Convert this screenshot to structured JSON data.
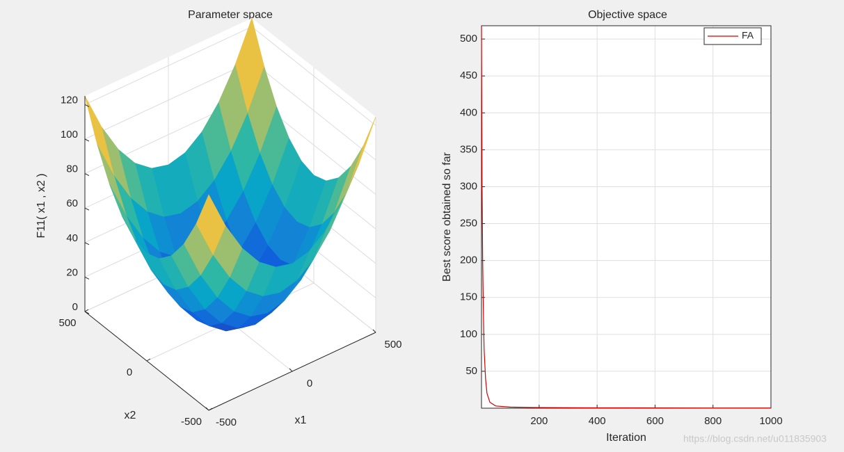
{
  "chart_data": [
    {
      "type": "surface",
      "title": "Parameter space",
      "xlabel": "x1",
      "ylabel": "x2",
      "zlabel": "F11( x1 , x2 )",
      "x": [
        -500,
        -400,
        -300,
        -200,
        -100,
        0,
        100,
        200,
        300,
        400,
        500
      ],
      "y": [
        -500,
        -400,
        -300,
        -200,
        -100,
        0,
        100,
        200,
        300,
        400,
        500
      ],
      "z": [
        [
          125,
          102.5,
          85,
          72.5,
          65,
          62.5,
          65,
          72.5,
          85,
          102.5,
          125
        ],
        [
          102.5,
          80,
          62.5,
          50,
          42.5,
          40,
          42.5,
          50,
          62.5,
          80,
          102.5
        ],
        [
          85,
          62.5,
          45,
          32.5,
          25,
          22.5,
          25,
          32.5,
          45,
          62.5,
          85
        ],
        [
          72.5,
          50,
          32.5,
          20,
          12.5,
          10,
          12.5,
          20,
          32.5,
          50,
          72.5
        ],
        [
          65,
          42.5,
          25,
          12.5,
          5,
          2.5,
          5,
          12.5,
          25,
          42.5,
          65
        ],
        [
          62.5,
          40,
          22.5,
          10,
          2.5,
          0,
          2.5,
          10,
          22.5,
          40,
          62.5
        ],
        [
          65,
          42.5,
          25,
          12.5,
          5,
          2.5,
          5,
          12.5,
          25,
          42.5,
          65
        ],
        [
          72.5,
          50,
          32.5,
          20,
          12.5,
          10,
          12.5,
          20,
          32.5,
          50,
          72.5
        ],
        [
          85,
          62.5,
          45,
          32.5,
          25,
          22.5,
          25,
          32.5,
          45,
          62.5,
          85
        ],
        [
          102.5,
          80,
          62.5,
          50,
          42.5,
          40,
          42.5,
          50,
          62.5,
          80,
          102.5
        ],
        [
          125,
          102.5,
          85,
          72.5,
          65,
          62.5,
          65,
          72.5,
          85,
          102.5,
          125
        ]
      ],
      "xlim": [
        -500,
        500
      ],
      "ylim": [
        -500,
        500
      ],
      "zlim": [
        0,
        125
      ],
      "xticks": [
        -500,
        0,
        500
      ],
      "yticks": [
        -500,
        0,
        500
      ],
      "zticks": [
        0,
        20,
        40,
        60,
        80,
        100,
        120
      ],
      "colormap": [
        "#352a87",
        "#0f5cdd",
        "#1481d6",
        "#06a4ca",
        "#2eb7a4",
        "#87bf77",
        "#d1bb59",
        "#fec832",
        "#f9fb0e"
      ],
      "grid": true
    },
    {
      "type": "line",
      "title": "Objective space",
      "xlabel": "Iteration",
      "ylabel": "Best score obtained so far",
      "series": [
        {
          "name": "FA",
          "color": "#d40000",
          "x": [
            1,
            2,
            3,
            5,
            8,
            10,
            15,
            20,
            30,
            50,
            100,
            200,
            400,
            600,
            800,
            1000
          ],
          "values": [
            518,
            400,
            300,
            200,
            120,
            80,
            40,
            20,
            8,
            3,
            1.5,
            0.8,
            0.5,
            0.4,
            0.3,
            0.3
          ]
        }
      ],
      "xlim": [
        1,
        1000
      ],
      "ylim": [
        0,
        518
      ],
      "xticks": [
        200,
        400,
        600,
        800,
        1000
      ],
      "yticks": [
        50,
        100,
        150,
        200,
        250,
        300,
        350,
        400,
        450,
        500
      ],
      "grid": true,
      "legend": "northeast"
    }
  ],
  "watermark": "https://blog.csdn.net/u011835903"
}
